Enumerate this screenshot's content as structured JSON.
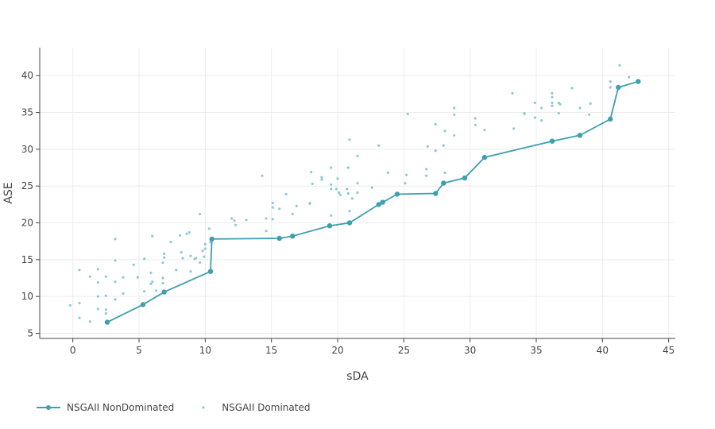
{
  "chart_data": {
    "type": "scatter",
    "title": "",
    "xlabel": "sDA",
    "ylabel": "ASE",
    "xlim": [
      -2.5,
      45.5
    ],
    "ylim": [
      4.3,
      43.8
    ],
    "xticks": [
      0,
      5,
      10,
      15,
      20,
      25,
      30,
      35,
      40,
      45
    ],
    "yticks": [
      5,
      10,
      15,
      20,
      25,
      30,
      35,
      40
    ],
    "grid": true,
    "legend_position": "bottom-left",
    "colors": {
      "nondominated": "#3f9fae",
      "dominated": "#8ccbd6"
    },
    "series": [
      {
        "name": "NSGAII NonDominated",
        "mode": "lines+markers",
        "points": [
          [
            2.6,
            6.5
          ],
          [
            5.3,
            8.9
          ],
          [
            6.9,
            10.6
          ],
          [
            10.4,
            13.4
          ],
          [
            10.5,
            17.8
          ],
          [
            15.6,
            17.9
          ],
          [
            16.6,
            18.2
          ],
          [
            19.4,
            19.6
          ],
          [
            20.9,
            20.0
          ],
          [
            23.1,
            22.5
          ],
          [
            23.4,
            22.8
          ],
          [
            24.5,
            23.9
          ],
          [
            27.4,
            24.0
          ],
          [
            28.0,
            25.4
          ],
          [
            29.6,
            26.1
          ],
          [
            31.1,
            28.9
          ],
          [
            36.2,
            31.1
          ],
          [
            38.3,
            31.9
          ],
          [
            40.6,
            34.1
          ],
          [
            41.2,
            38.4
          ],
          [
            42.7,
            39.2
          ]
        ]
      },
      {
        "name": "NSGAII Dominated",
        "mode": "markers",
        "points": [
          [
            -0.2,
            8.8
          ],
          [
            0.5,
            7.1
          ],
          [
            0.5,
            9.1
          ],
          [
            0.5,
            13.6
          ],
          [
            1.3,
            6.6
          ],
          [
            1.3,
            12.7
          ],
          [
            1.9,
            8.3
          ],
          [
            1.9,
            10.0
          ],
          [
            1.9,
            11.9
          ],
          [
            1.9,
            13.7
          ],
          [
            2.5,
            7.7
          ],
          [
            2.5,
            8.2
          ],
          [
            2.5,
            10.1
          ],
          [
            2.5,
            12.7
          ],
          [
            3.2,
            9.6
          ],
          [
            3.2,
            12.0
          ],
          [
            3.2,
            14.9
          ],
          [
            3.2,
            17.8
          ],
          [
            3.8,
            10.4
          ],
          [
            3.8,
            12.6
          ],
          [
            4.6,
            14.3
          ],
          [
            4.9,
            12.6
          ],
          [
            5.4,
            10.7
          ],
          [
            5.4,
            15.1
          ],
          [
            5.9,
            13.2
          ],
          [
            5.9,
            11.7
          ],
          [
            6.0,
            12.0
          ],
          [
            6.0,
            18.2
          ],
          [
            6.3,
            10.8
          ],
          [
            6.8,
            11.8
          ],
          [
            6.8,
            12.5
          ],
          [
            6.8,
            14.6
          ],
          [
            6.9,
            15.3
          ],
          [
            6.9,
            15.8
          ],
          [
            7.4,
            17.4
          ],
          [
            7.8,
            13.6
          ],
          [
            8.1,
            18.3
          ],
          [
            8.2,
            16.0
          ],
          [
            8.3,
            15.2
          ],
          [
            8.6,
            18.5
          ],
          [
            8.8,
            18.7
          ],
          [
            8.9,
            15.5
          ],
          [
            8.9,
            13.4
          ],
          [
            9.2,
            15.1
          ],
          [
            9.3,
            15.2
          ],
          [
            9.6,
            14.6
          ],
          [
            9.6,
            21.2
          ],
          [
            9.8,
            16.2
          ],
          [
            9.9,
            15.4
          ],
          [
            10.0,
            16.5
          ],
          [
            10.0,
            17.1
          ],
          [
            10.3,
            19.2
          ],
          [
            10.4,
            17.4
          ],
          [
            12.0,
            20.6
          ],
          [
            12.2,
            20.3
          ],
          [
            12.3,
            19.7
          ],
          [
            13.1,
            20.4
          ],
          [
            14.3,
            26.4
          ],
          [
            14.6,
            20.6
          ],
          [
            14.6,
            18.9
          ],
          [
            15.1,
            22.7
          ],
          [
            15.1,
            20.5
          ],
          [
            15.1,
            22.1
          ],
          [
            15.6,
            21.9
          ],
          [
            16.1,
            23.9
          ],
          [
            16.6,
            21.2
          ],
          [
            16.9,
            22.3
          ],
          [
            17.9,
            22.6
          ],
          [
            17.9,
            22.7
          ],
          [
            18.0,
            26.9
          ],
          [
            18.1,
            25.3
          ],
          [
            18.8,
            25.9
          ],
          [
            18.8,
            26.2
          ],
          [
            19.5,
            27.5
          ],
          [
            19.5,
            25.2
          ],
          [
            19.5,
            24.6
          ],
          [
            19.5,
            21.0
          ],
          [
            19.9,
            24.6
          ],
          [
            20.0,
            26.0
          ],
          [
            20.1,
            24.1
          ],
          [
            20.2,
            23.8
          ],
          [
            20.7,
            24.6
          ],
          [
            20.8,
            24.0
          ],
          [
            20.8,
            27.5
          ],
          [
            20.9,
            31.3
          ],
          [
            20.9,
            21.6
          ],
          [
            21.1,
            23.3
          ],
          [
            21.5,
            24.1
          ],
          [
            21.5,
            25.4
          ],
          [
            21.5,
            29.1
          ],
          [
            22.6,
            24.8
          ],
          [
            23.1,
            30.5
          ],
          [
            23.8,
            26.8
          ],
          [
            25.1,
            25.4
          ],
          [
            25.2,
            26.5
          ],
          [
            25.3,
            34.8
          ],
          [
            26.7,
            26.4
          ],
          [
            26.7,
            27.3
          ],
          [
            26.8,
            30.4
          ],
          [
            27.4,
            29.8
          ],
          [
            27.4,
            33.4
          ],
          [
            28.0,
            30.5
          ],
          [
            28.1,
            26.8
          ],
          [
            28.1,
            32.5
          ],
          [
            28.8,
            34.7
          ],
          [
            28.8,
            35.6
          ],
          [
            28.8,
            31.9
          ],
          [
            30.4,
            34.2
          ],
          [
            30.4,
            33.3
          ],
          [
            31.1,
            32.6
          ],
          [
            33.2,
            37.6
          ],
          [
            33.3,
            32.8
          ],
          [
            34.1,
            34.9
          ],
          [
            34.1,
            34.8
          ],
          [
            34.9,
            36.3
          ],
          [
            34.9,
            34.3
          ],
          [
            35.4,
            35.6
          ],
          [
            35.4,
            33.9
          ],
          [
            36.2,
            37.6
          ],
          [
            36.2,
            37.1
          ],
          [
            36.2,
            36.3
          ],
          [
            36.2,
            35.9
          ],
          [
            36.7,
            34.9
          ],
          [
            36.7,
            36.3
          ],
          [
            36.8,
            36.1
          ],
          [
            37.7,
            38.3
          ],
          [
            38.3,
            35.6
          ],
          [
            39.0,
            34.7
          ],
          [
            39.1,
            36.2
          ],
          [
            40.6,
            38.4
          ],
          [
            40.6,
            39.2
          ],
          [
            41.3,
            41.4
          ],
          [
            42.0,
            39.8
          ]
        ]
      }
    ]
  }
}
